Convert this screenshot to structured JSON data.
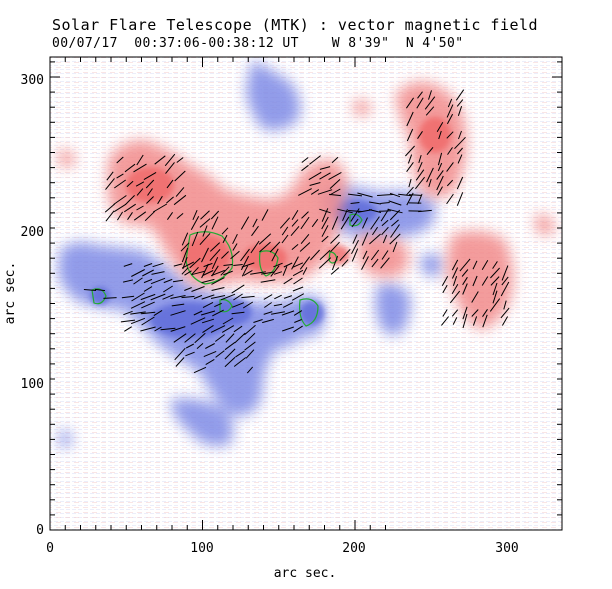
{
  "header": {
    "title": "Solar Flare Telescope (MTK) : vector magnetic field",
    "date": "00/07/17",
    "time_range": "00:37:06-00:38:12 UT",
    "lon": "W 8'39\"",
    "lat": "N 4'50\""
  },
  "axes": {
    "xlabel": "arc sec.",
    "ylabel": "arc sec.",
    "x_ticks": [
      "0",
      "100",
      "200",
      "300"
    ],
    "y_ticks": [
      "0",
      "100",
      "200",
      "300"
    ]
  },
  "colors": {
    "positive": "#f28b8b",
    "negative": "#7f8be6",
    "contour": "#22aa33",
    "vectors": "#000000"
  }
}
